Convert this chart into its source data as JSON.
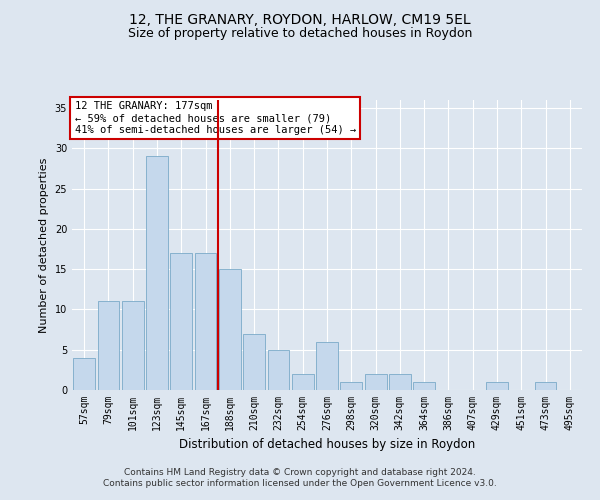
{
  "title": "12, THE GRANARY, ROYDON, HARLOW, CM19 5EL",
  "subtitle": "Size of property relative to detached houses in Roydon",
  "xlabel": "Distribution of detached houses by size in Roydon",
  "ylabel": "Number of detached properties",
  "categories": [
    "57sqm",
    "79sqm",
    "101sqm",
    "123sqm",
    "145sqm",
    "167sqm",
    "188sqm",
    "210sqm",
    "232sqm",
    "254sqm",
    "276sqm",
    "298sqm",
    "320sqm",
    "342sqm",
    "364sqm",
    "386sqm",
    "407sqm",
    "429sqm",
    "451sqm",
    "473sqm",
    "495sqm"
  ],
  "values": [
    4,
    11,
    11,
    29,
    17,
    17,
    15,
    7,
    5,
    2,
    6,
    1,
    2,
    2,
    1,
    0,
    0,
    1,
    0,
    1,
    0
  ],
  "bar_color": "#c5d8ec",
  "bar_edge_color": "#7aaac8",
  "reference_line_x": 5.5,
  "annotation_line1": "12 THE GRANARY: 177sqm",
  "annotation_line2": "← 59% of detached houses are smaller (79)",
  "annotation_line3": "41% of semi-detached houses are larger (54) →",
  "annotation_box_color": "#ffffff",
  "annotation_box_edge": "#cc0000",
  "reference_line_color": "#cc0000",
  "ylim": [
    0,
    36
  ],
  "yticks": [
    0,
    5,
    10,
    15,
    20,
    25,
    30,
    35
  ],
  "footer1": "Contains HM Land Registry data © Crown copyright and database right 2024.",
  "footer2": "Contains public sector information licensed under the Open Government Licence v3.0.",
  "bg_color": "#dde6f0",
  "plot_bg_color": "#dde6f0",
  "title_fontsize": 10,
  "subtitle_fontsize": 9,
  "xlabel_fontsize": 8.5,
  "ylabel_fontsize": 8,
  "tick_fontsize": 7,
  "footer_fontsize": 6.5,
  "annotation_fontsize": 7.5
}
